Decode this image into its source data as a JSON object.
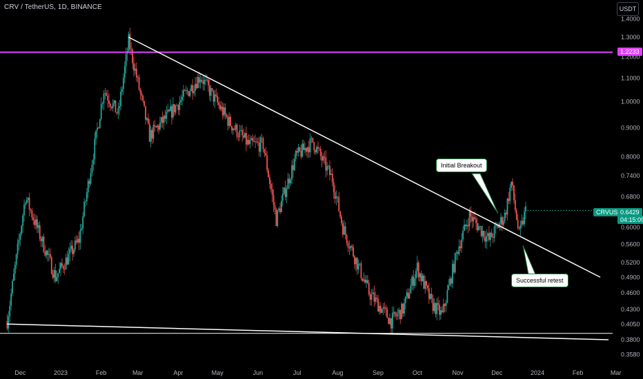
{
  "header": {
    "symbol_title": "CRV / TetherUS, 1D, BINANCE",
    "currency_button": "USDT"
  },
  "colors": {
    "up": "#26a69a",
    "down": "#ef5350",
    "trendline": "#ffffff",
    "resistance": "#e040fb",
    "last_price_tag": "#089981",
    "note_border": "#1b7a3a"
  },
  "price_tags": {
    "resistance_label": "1.2233",
    "symbol_label": "CRVUSDT",
    "last_price": "0.6429",
    "countdown": "04:15:09"
  },
  "annotations": {
    "breakout": "Initial Breakout",
    "retest": "Successful retest"
  },
  "chart_data": {
    "type": "candlestick",
    "y_scale": "log",
    "y_ticks": [
      "1.4000",
      "1.3000",
      "1.2000",
      "1.1000",
      "1.0000",
      "0.9000",
      "0.8000",
      "0.7400",
      "0.6800",
      "0.6400",
      "0.6000",
      "0.5600",
      "0.5200",
      "0.4900",
      "0.4600",
      "0.4300",
      "0.4050",
      "0.3800",
      "0.3580"
    ],
    "x_ticks": [
      "Dec",
      "2023",
      "Feb",
      "Mar",
      "Apr",
      "May",
      "Jun",
      "Jul",
      "Aug",
      "Sep",
      "Oct",
      "Nov",
      "Dec",
      "2024",
      "Feb",
      "Mar"
    ],
    "ylim": [
      0.35,
      1.45
    ],
    "key_points": [
      {
        "x": "2022-11-21",
        "y": 0.41
      },
      {
        "x": "2022-12-05",
        "y": 0.68
      },
      {
        "x": "2022-12-28",
        "y": 0.49
      },
      {
        "x": "2023-01-15",
        "y": 0.57
      },
      {
        "x": "2023-02-03",
        "y": 1.05
      },
      {
        "x": "2023-02-14",
        "y": 0.95
      },
      {
        "x": "2023-02-22",
        "y": 1.28
      },
      {
        "x": "2023-03-10",
        "y": 0.87
      },
      {
        "x": "2023-03-25",
        "y": 0.95
      },
      {
        "x": "2023-04-18",
        "y": 1.11
      },
      {
        "x": "2023-05-10",
        "y": 0.92
      },
      {
        "x": "2023-05-25",
        "y": 0.84
      },
      {
        "x": "2023-06-05",
        "y": 0.84
      },
      {
        "x": "2023-06-15",
        "y": 0.62
      },
      {
        "x": "2023-06-30",
        "y": 0.8
      },
      {
        "x": "2023-07-13",
        "y": 0.85
      },
      {
        "x": "2023-07-28",
        "y": 0.73
      },
      {
        "x": "2023-08-05",
        "y": 0.6
      },
      {
        "x": "2023-08-25",
        "y": 0.46
      },
      {
        "x": "2023-09-11",
        "y": 0.41
      },
      {
        "x": "2023-09-20",
        "y": 0.43
      },
      {
        "x": "2023-10-01",
        "y": 0.51
      },
      {
        "x": "2023-10-12",
        "y": 0.44
      },
      {
        "x": "2023-10-20",
        "y": 0.42
      },
      {
        "x": "2023-11-01",
        "y": 0.55
      },
      {
        "x": "2023-11-10",
        "y": 0.63
      },
      {
        "x": "2023-11-25",
        "y": 0.57
      },
      {
        "x": "2023-12-07",
        "y": 0.63
      },
      {
        "x": "2023-12-12",
        "y": 0.72
      },
      {
        "x": "2023-12-18",
        "y": 0.58
      },
      {
        "x": "2023-12-23",
        "y": 0.643
      }
    ],
    "horizontal_lines": [
      {
        "y": 1.2233,
        "color": "#e040fb"
      },
      {
        "y": 0.39,
        "color": "#ffffff"
      }
    ],
    "trendlines": [
      {
        "from": {
          "x": "2023-02-22",
          "y": 1.3
        },
        "to": {
          "x": "2024-03-10",
          "y": 0.49
        }
      },
      {
        "from": {
          "x": "2022-11-21",
          "y": 0.405
        },
        "to": {
          "x": "2024-03-10",
          "y": 0.38
        }
      }
    ],
    "last_price": 0.6429
  }
}
